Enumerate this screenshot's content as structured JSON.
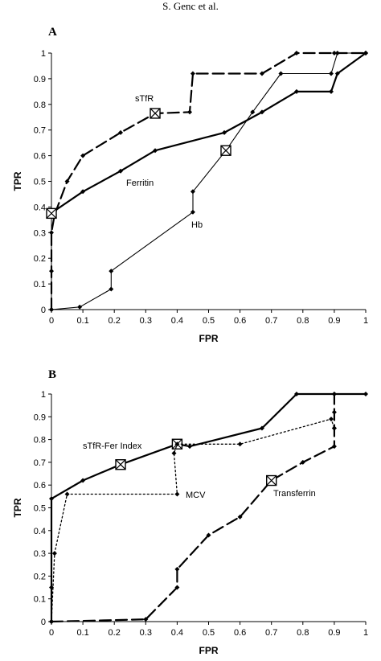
{
  "page": {
    "header": "S. Genc et al."
  },
  "chart_data": [
    {
      "panel": "A",
      "type": "line",
      "xlabel": "FPR",
      "ylabel": "TPR",
      "xlim": [
        0,
        1
      ],
      "ylim": [
        0,
        1
      ],
      "x_ticks": [
        "0",
        "0.1",
        "0.2",
        "0.3",
        "0.4",
        "0.5",
        "0.6",
        "0.7",
        "0.8",
        "0.9",
        "1"
      ],
      "y_ticks": [
        "0",
        "0.1",
        "0.2",
        "0.3",
        "0.4",
        "0.5",
        "0.6",
        "0.7",
        "0.8",
        "0.9",
        "1"
      ],
      "grid": false,
      "series": [
        {
          "name": "sTfR",
          "style": "dashed",
          "color": "#000000",
          "points": [
            [
              0,
              0
            ],
            [
              0,
              0.15
            ],
            [
              0,
              0.3
            ],
            [
              0.01,
              0.37
            ],
            [
              0.05,
              0.5
            ],
            [
              0.1,
              0.6
            ],
            [
              0.22,
              0.69
            ],
            [
              0.33,
              0.765
            ],
            [
              0.44,
              0.77
            ],
            [
              0.45,
              0.92
            ],
            [
              0.67,
              0.92
            ],
            [
              0.78,
              1.0
            ],
            [
              0.9,
              1.0
            ],
            [
              1.0,
              1.0
            ]
          ],
          "big_markers": [
            [
              0.33,
              0.765
            ]
          ]
        },
        {
          "name": "Ferritin",
          "style": "solid-thick",
          "color": "#000000",
          "points": [
            [
              0,
              0.37
            ],
            [
              0.01,
              0.385
            ],
            [
              0.1,
              0.46
            ],
            [
              0.22,
              0.54
            ],
            [
              0.33,
              0.62
            ],
            [
              0.55,
              0.69
            ],
            [
              0.67,
              0.77
            ],
            [
              0.78,
              0.85
            ],
            [
              0.89,
              0.85
            ],
            [
              0.91,
              0.92
            ],
            [
              1.0,
              1.0
            ]
          ],
          "big_markers": [
            [
              0,
              0.375
            ]
          ]
        },
        {
          "name": "Hb",
          "style": "solid-thin",
          "color": "#000000",
          "points": [
            [
              0,
              0
            ],
            [
              0.09,
              0.01
            ],
            [
              0.19,
              0.08
            ],
            [
              0.19,
              0.15
            ],
            [
              0.45,
              0.38
            ],
            [
              0.45,
              0.46
            ],
            [
              0.555,
              0.62
            ],
            [
              0.64,
              0.77
            ],
            [
              0.73,
              0.92
            ],
            [
              0.89,
              0.92
            ],
            [
              0.91,
              1.0
            ],
            [
              1.0,
              1.0
            ]
          ],
          "big_markers": [
            [
              0.555,
              0.62
            ]
          ]
        }
      ]
    },
    {
      "panel": "B",
      "type": "line",
      "xlabel": "FPR",
      "ylabel": "TPR",
      "xlim": [
        0,
        1
      ],
      "ylim": [
        0,
        1
      ],
      "x_ticks": [
        "0",
        "0.1",
        "0.2",
        "0.3",
        "0.4",
        "0.5",
        "0.6",
        "0.7",
        "0.8",
        "0.9",
        "1"
      ],
      "y_ticks": [
        "0",
        "0.1",
        "0.2",
        "0.3",
        "0.4",
        "0.5",
        "0.6",
        "0.7",
        "0.8",
        "0.9",
        "1"
      ],
      "grid": false,
      "series": [
        {
          "name": "sTfR-Fer Index",
          "style": "solid-thick",
          "color": "#000000",
          "points": [
            [
              0,
              0
            ],
            [
              0,
              0.15
            ],
            [
              0,
              0.54
            ],
            [
              0.1,
              0.62
            ],
            [
              0.22,
              0.69
            ],
            [
              0.4,
              0.78
            ],
            [
              0.44,
              0.77
            ],
            [
              0.67,
              0.85
            ],
            [
              0.78,
              1.0
            ],
            [
              0.9,
              1.0
            ],
            [
              1.0,
              1.0
            ]
          ],
          "big_markers": [
            [
              0.22,
              0.69
            ],
            [
              0.4,
              0.78
            ]
          ]
        },
        {
          "name": "MCV",
          "style": "dotted",
          "color": "#000000",
          "points": [
            [
              0,
              0
            ],
            [
              0.01,
              0.3
            ],
            [
              0.05,
              0.56
            ],
            [
              0.4,
              0.56
            ],
            [
              0.39,
              0.74
            ],
            [
              0.4,
              0.78
            ],
            [
              0.6,
              0.78
            ],
            [
              0.89,
              0.89
            ],
            [
              0.9,
              0.85
            ]
          ],
          "big_markers": []
        },
        {
          "name": "Transferrin",
          "style": "dashed",
          "color": "#000000",
          "points": [
            [
              0,
              0
            ],
            [
              0.3,
              0.01
            ],
            [
              0.4,
              0.15
            ],
            [
              0.4,
              0.23
            ],
            [
              0.5,
              0.38
            ],
            [
              0.6,
              0.46
            ],
            [
              0.7,
              0.62
            ],
            [
              0.8,
              0.7
            ],
            [
              0.9,
              0.77
            ],
            [
              0.9,
              0.85
            ],
            [
              0.9,
              0.92
            ],
            [
              0.9,
              1.0
            ]
          ],
          "big_markers": [
            [
              0.7,
              0.62
            ]
          ]
        }
      ]
    }
  ]
}
